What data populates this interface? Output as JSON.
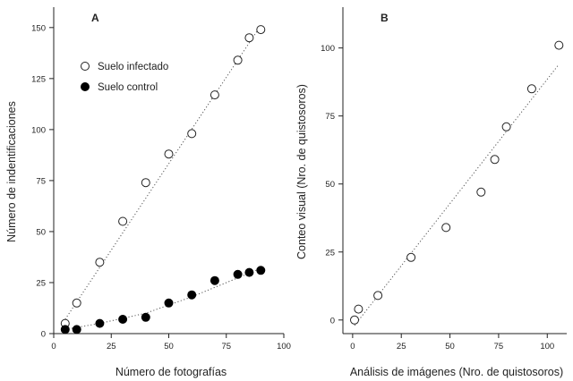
{
  "chart_data": [
    {
      "type": "scatter",
      "panel_label": "A",
      "xlabel": "Número de fotografías",
      "ylabel": "Número de indentificaciones",
      "xlim": [
        0,
        100
      ],
      "ylim": [
        0,
        160
      ],
      "xticks": [
        0,
        25,
        50,
        75,
        100
      ],
      "yticks": [
        0,
        25,
        50,
        75,
        100,
        125,
        150
      ],
      "grid": false,
      "legend_position": "top-left",
      "series": [
        {
          "name": "Suelo infectado",
          "marker": "open-circle",
          "x": [
            5,
            10,
            20,
            30,
            40,
            50,
            60,
            70,
            80,
            85,
            90
          ],
          "y": [
            5,
            15,
            35,
            55,
            74,
            88,
            98,
            117,
            134,
            145,
            149
          ],
          "trend": [
            [
              5,
              7
            ],
            [
              90,
              151
            ]
          ]
        },
        {
          "name": "Suelo control",
          "marker": "filled-circle",
          "x": [
            5,
            10,
            20,
            30,
            40,
            50,
            60,
            70,
            80,
            85,
            90
          ],
          "y": [
            2,
            2,
            5,
            7,
            8,
            15,
            19,
            26,
            29,
            30,
            31
          ],
          "trend": [
            [
              5,
              2
            ],
            [
              20,
              5
            ],
            [
              40,
              10
            ],
            [
              60,
              18
            ],
            [
              75,
              25
            ],
            [
              90,
              32
            ]
          ]
        }
      ]
    },
    {
      "type": "scatter",
      "panel_label": "B",
      "xlabel": "Análisis de imágenes (Nro. de quistosoros)",
      "ylabel": "Conteo visual (Nro. de quistosoros)",
      "xlim": [
        -5,
        110
      ],
      "ylim": [
        -5,
        115
      ],
      "xticks": [
        0,
        25,
        50,
        75,
        100
      ],
      "yticks": [
        0,
        25,
        50,
        75,
        100
      ],
      "grid": false,
      "series": [
        {
          "marker": "open-circle",
          "x": [
            1,
            3,
            13,
            30,
            48,
            66,
            73,
            79,
            92,
            106
          ],
          "y": [
            0,
            4,
            9,
            23,
            34,
            47,
            59,
            71,
            85,
            101
          ],
          "trend": [
            [
              1,
              -2
            ],
            [
              106,
              94
            ]
          ]
        }
      ]
    }
  ]
}
